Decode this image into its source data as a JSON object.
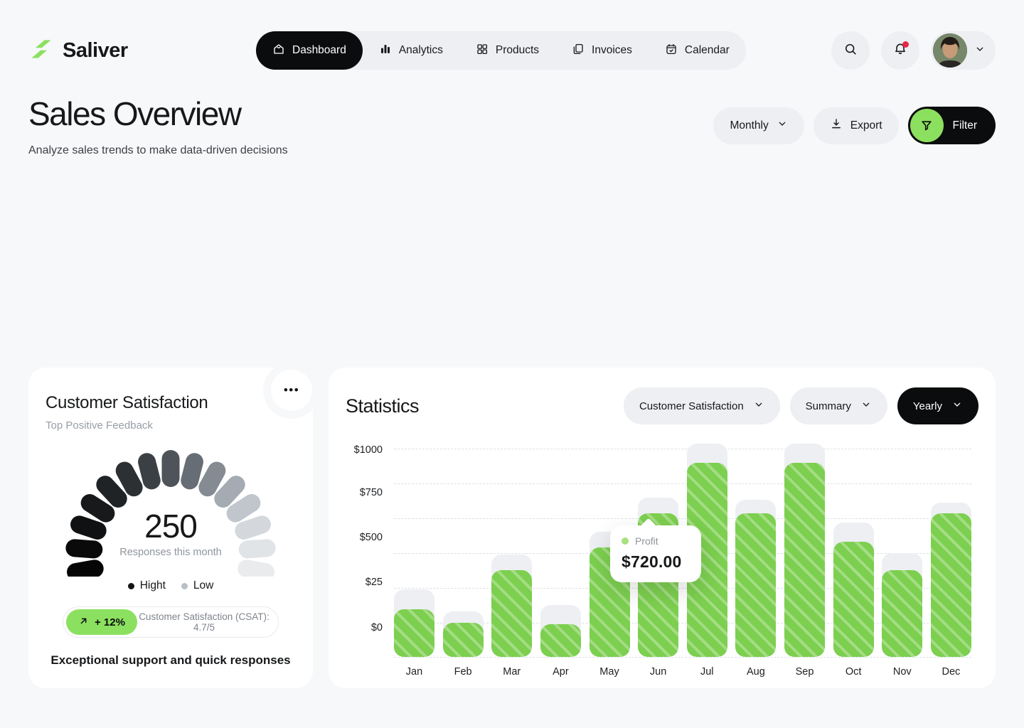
{
  "brand": {
    "name": "Saliver",
    "accent": "#8ce05f"
  },
  "nav": {
    "items": [
      {
        "label": "Dashboard",
        "icon": "home-icon",
        "active": true
      },
      {
        "label": "Analytics",
        "icon": "analytics-icon",
        "active": false
      },
      {
        "label": "Products",
        "icon": "products-grid-icon",
        "active": false
      },
      {
        "label": "Invoices",
        "icon": "invoices-icon",
        "active": false
      },
      {
        "label": "Calendar",
        "icon": "calendar-icon",
        "active": false
      }
    ],
    "search_icon": "search-icon",
    "notifications": {
      "icon": "bell-icon",
      "has_unread": true
    }
  },
  "page_header": {
    "title": "Sales Overview",
    "subtitle": "Analyze sales trends to make data-driven decisions",
    "period_dropdown": "Monthly",
    "export_label": "Export",
    "filter_label": "Filter"
  },
  "satisfaction_card": {
    "title": "Customer Satisfaction",
    "subtitle": "Top Positive Feedback",
    "more_icon": "•••",
    "gauge_value": "250",
    "gauge_caption": "Responses this month",
    "gauge_colors": [
      "#050505",
      "#0a0a0b",
      "#101112",
      "#17191a",
      "#202325",
      "#2c3033",
      "#3b4045",
      "#4e545a",
      "#666d74",
      "#848b93",
      "#a4abb2",
      "#c0c6cb",
      "#d4d8dc",
      "#e1e4e7",
      "#e9ebed"
    ],
    "legend": [
      {
        "label": "Hight",
        "color": "#141414"
      },
      {
        "label": "Low",
        "color": "#b9bfc4"
      }
    ],
    "change_badge": "+ 12%",
    "csat_text": "Customer Satisfaction (CSAT): 4.7/5",
    "footnote": "Exceptional support and quick responses"
  },
  "statistics_card": {
    "title": "Statistics",
    "metric_dropdown": "Customer Satisfaction",
    "mode_dropdown": "Summary",
    "range_dropdown": "Yearly"
  },
  "chart_data": {
    "type": "bar",
    "title": "Statistics",
    "categories": [
      "Jan",
      "Feb",
      "Mar",
      "Apr",
      "May",
      "Jun",
      "Jul",
      "Aug",
      "Sep",
      "Oct",
      "Nov",
      "Dec"
    ],
    "series": [
      {
        "name": "Profit",
        "values": [
          240,
          170,
          435,
          165,
          550,
          720,
          975,
          720,
          975,
          580,
          435,
          720
        ]
      },
      {
        "name": "Background track",
        "values": [
          340,
          230,
          515,
          260,
          630,
          800,
          1070,
          790,
          1070,
          675,
          520,
          775
        ]
      }
    ],
    "y_ticks": [
      "$1000",
      "$750",
      "$500",
      "$25",
      "$0"
    ],
    "ylim": [
      0,
      1000
    ],
    "grid": "horizontal-dashed",
    "legend_position": "none",
    "bar_color": "#7ccf4f",
    "track_color": "#edeff2",
    "tooltip": {
      "category": "Jun",
      "label": "Profit",
      "value": "$720.00",
      "dot_color": "#a9e17f"
    }
  }
}
